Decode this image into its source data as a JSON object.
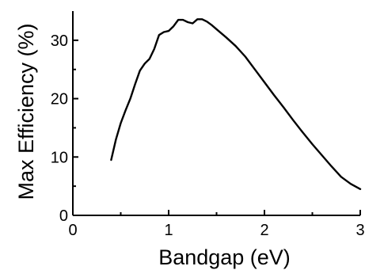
{
  "chart_data": {
    "type": "line",
    "title": "",
    "xlabel": "Bandgap (eV)",
    "ylabel": "Max Efficiency (%)",
    "xlim": [
      0,
      3
    ],
    "ylim": [
      0,
      35
    ],
    "x_ticks": [
      0,
      1,
      2,
      3
    ],
    "x_tick_labels": [
      "0",
      "1",
      "2",
      "3"
    ],
    "y_ticks": [
      0,
      10,
      20,
      30
    ],
    "y_tick_labels": [
      "0",
      "10",
      "20",
      "30"
    ],
    "grid": false,
    "legend": "none",
    "line_color": "#000000",
    "series": [
      {
        "x": [
          0.4,
          0.45,
          0.5,
          0.55,
          0.6,
          0.65,
          0.7,
          0.75,
          0.8,
          0.85,
          0.9,
          0.95,
          1.0,
          1.05,
          1.1,
          1.15,
          1.2,
          1.25,
          1.3,
          1.35,
          1.4,
          1.45,
          1.5,
          1.6,
          1.7,
          1.8,
          1.9,
          2.0,
          2.1,
          2.2,
          2.3,
          2.4,
          2.5,
          2.6,
          2.7,
          2.8,
          2.9,
          3.0
        ],
        "values": [
          9.5,
          13.0,
          15.8,
          18.0,
          20.0,
          22.5,
          24.8,
          26.0,
          26.8,
          28.5,
          30.9,
          31.4,
          31.6,
          32.4,
          33.5,
          33.5,
          33.1,
          32.9,
          33.6,
          33.6,
          33.2,
          32.6,
          31.9,
          30.5,
          29.0,
          27.2,
          25.0,
          22.8,
          20.6,
          18.5,
          16.3,
          14.2,
          12.2,
          10.3,
          8.4,
          6.6,
          5.4,
          4.5
        ]
      }
    ]
  }
}
